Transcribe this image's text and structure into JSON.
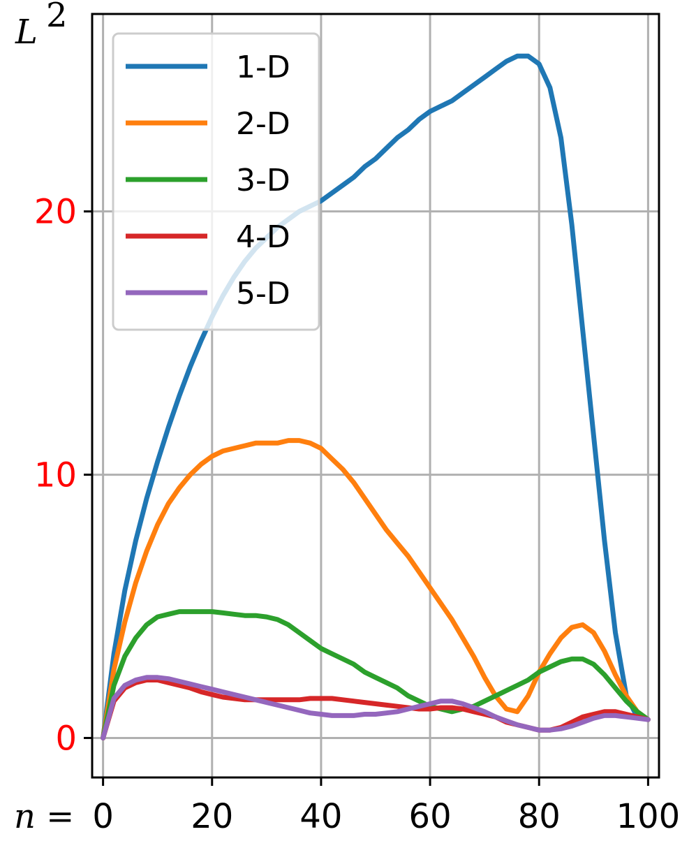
{
  "chart_data": {
    "type": "line",
    "ylabel": "L",
    "ylabel_superscript": "2",
    "xlabel_prefix": "n =",
    "xlim": [
      -2,
      102
    ],
    "ylim": [
      -1.5,
      27.5
    ],
    "x_ticks": [
      0,
      20,
      40,
      60,
      80,
      100
    ],
    "x_tick_labels": [
      "0",
      "20",
      "40",
      "60",
      "80",
      "100"
    ],
    "y_ticks": [
      0,
      10,
      20
    ],
    "y_tick_labels": [
      "0",
      "10",
      "20"
    ],
    "y_tick_color": "#ff0000",
    "grid": true,
    "legend_position": "top-left",
    "x": [
      0,
      2,
      4,
      6,
      8,
      10,
      12,
      14,
      16,
      18,
      20,
      22,
      24,
      26,
      28,
      30,
      32,
      34,
      36,
      38,
      40,
      42,
      44,
      46,
      48,
      50,
      52,
      54,
      56,
      58,
      60,
      62,
      64,
      66,
      68,
      70,
      72,
      74,
      76,
      78,
      80,
      82,
      84,
      86,
      88,
      90,
      92,
      94,
      96,
      98,
      100
    ],
    "series": [
      {
        "name": "1-D",
        "color": "#1f77b4",
        "values": [
          0,
          3.2,
          5.6,
          7.5,
          9.1,
          10.5,
          11.8,
          13.0,
          14.1,
          15.1,
          16.0,
          16.8,
          17.5,
          18.1,
          18.6,
          19.0,
          19.4,
          19.7,
          20.0,
          20.2,
          20.4,
          20.7,
          21.0,
          21.3,
          21.7,
          22.0,
          22.4,
          22.8,
          23.1,
          23.5,
          23.8,
          24.0,
          24.2,
          24.5,
          24.8,
          25.1,
          25.4,
          25.7,
          25.9,
          25.9,
          25.6,
          24.7,
          22.8,
          19.5,
          15.5,
          11.5,
          7.5,
          4.0,
          1.6,
          0.8,
          0.7
        ]
      },
      {
        "name": "2-D",
        "color": "#ff7f0e",
        "values": [
          0,
          2.6,
          4.4,
          5.9,
          7.1,
          8.1,
          8.9,
          9.5,
          10.0,
          10.4,
          10.7,
          10.9,
          11.0,
          11.1,
          11.2,
          11.2,
          11.2,
          11.3,
          11.3,
          11.2,
          11.0,
          10.6,
          10.2,
          9.7,
          9.1,
          8.5,
          7.9,
          7.4,
          6.9,
          6.3,
          5.7,
          5.1,
          4.5,
          3.8,
          3.1,
          2.3,
          1.6,
          1.1,
          1.0,
          1.6,
          2.5,
          3.2,
          3.8,
          4.2,
          4.3,
          4.0,
          3.3,
          2.4,
          1.6,
          1.0,
          0.7
        ]
      },
      {
        "name": "3-D",
        "color": "#2ca02c",
        "values": [
          0,
          2.0,
          3.1,
          3.8,
          4.3,
          4.6,
          4.7,
          4.8,
          4.8,
          4.8,
          4.8,
          4.75,
          4.7,
          4.65,
          4.65,
          4.6,
          4.5,
          4.3,
          4.0,
          3.7,
          3.4,
          3.2,
          3.0,
          2.8,
          2.5,
          2.3,
          2.1,
          1.9,
          1.6,
          1.4,
          1.2,
          1.1,
          1.0,
          1.1,
          1.2,
          1.4,
          1.6,
          1.8,
          2.0,
          2.2,
          2.5,
          2.7,
          2.9,
          3.0,
          3.0,
          2.8,
          2.4,
          1.9,
          1.4,
          1.0,
          0.7
        ]
      },
      {
        "name": "4-D",
        "color": "#d62728",
        "values": [
          0,
          1.4,
          1.9,
          2.1,
          2.2,
          2.2,
          2.1,
          2.0,
          1.9,
          1.75,
          1.65,
          1.55,
          1.5,
          1.45,
          1.45,
          1.45,
          1.45,
          1.45,
          1.45,
          1.5,
          1.5,
          1.5,
          1.45,
          1.4,
          1.35,
          1.3,
          1.25,
          1.2,
          1.15,
          1.1,
          1.1,
          1.15,
          1.15,
          1.1,
          1.0,
          0.9,
          0.8,
          0.6,
          0.5,
          0.4,
          0.3,
          0.3,
          0.4,
          0.6,
          0.8,
          0.9,
          1.0,
          1.0,
          0.9,
          0.8,
          0.7
        ]
      },
      {
        "name": "5-D",
        "color": "#9467bd",
        "values": [
          0,
          1.5,
          2.0,
          2.2,
          2.3,
          2.3,
          2.25,
          2.15,
          2.05,
          1.95,
          1.85,
          1.75,
          1.65,
          1.55,
          1.45,
          1.35,
          1.25,
          1.15,
          1.05,
          0.95,
          0.9,
          0.85,
          0.85,
          0.85,
          0.9,
          0.9,
          0.95,
          1.0,
          1.1,
          1.2,
          1.3,
          1.4,
          1.4,
          1.3,
          1.15,
          1.0,
          0.8,
          0.65,
          0.5,
          0.4,
          0.3,
          0.3,
          0.35,
          0.45,
          0.6,
          0.75,
          0.85,
          0.85,
          0.8,
          0.75,
          0.7
        ]
      }
    ]
  }
}
